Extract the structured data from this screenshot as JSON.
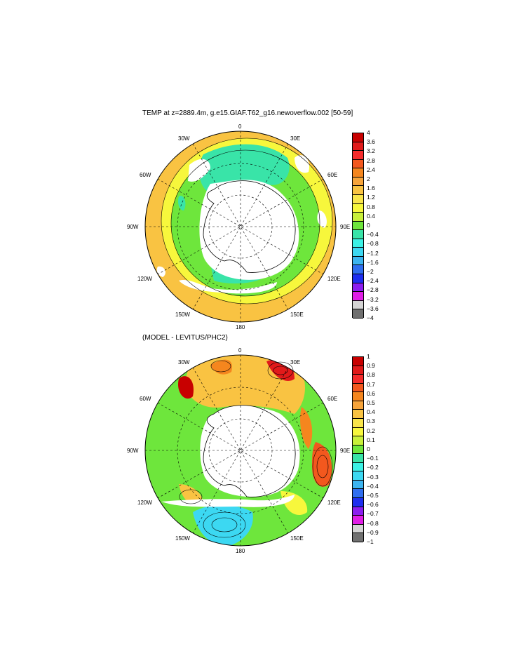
{
  "panels": [
    {
      "id": "top",
      "title": "TEMP at z=2889.4m, g.e15.GIAF.T62_g16.newoverflow.002 [50-59]",
      "longitude_labels": [
        "0",
        "30E",
        "60E",
        "90E",
        "120E",
        "150E",
        "180",
        "150W",
        "120W",
        "90W",
        "60W",
        "30W"
      ],
      "colorbar": {
        "labels": [
          "4",
          "3.6",
          "3.2",
          "2.8",
          "2.4",
          "2",
          "1.6",
          "1.2",
          "0.8",
          "0.4",
          "0",
          "−0.4",
          "−0.8",
          "−1.2",
          "−1.6",
          "−2",
          "−2.4",
          "−2.8",
          "−3.2",
          "−3.6",
          "−4"
        ],
        "colors": [
          "#c80000",
          "#e11a1a",
          "#f52b2b",
          "#f3581e",
          "#f5861e",
          "#f7a43a",
          "#f9c342",
          "#f9e54a",
          "#f7f73c",
          "#c8f03a",
          "#6ee63c",
          "#39e4a8",
          "#3cf2e6",
          "#3cd8f2",
          "#3cb4f0",
          "#2f6ef0",
          "#1e2ef0",
          "#8c1ef0",
          "#e01ee6",
          "#d4d4d4",
          "#707070"
        ]
      }
    },
    {
      "id": "bottom",
      "title": "(MODEL - LEVITUS/PHC2)",
      "longitude_labels": [
        "0",
        "30E",
        "60E",
        "90E",
        "120E",
        "150E",
        "180",
        "150W",
        "120W",
        "90W",
        "60W",
        "30W"
      ],
      "colorbar": {
        "labels": [
          "1",
          "0.9",
          "0.8",
          "0.7",
          "0.6",
          "0.5",
          "0.4",
          "0.3",
          "0.2",
          "0.1",
          "0",
          "−0.1",
          "−0.2",
          "−0.3",
          "−0.4",
          "−0.5",
          "−0.6",
          "−0.7",
          "−0.8",
          "−0.9",
          "−1"
        ],
        "colors": [
          "#c80000",
          "#e11a1a",
          "#f52b2b",
          "#f3581e",
          "#f5861e",
          "#f7a43a",
          "#f9c342",
          "#f9e54a",
          "#f7f73c",
          "#c8f03a",
          "#6ee63c",
          "#39e4a8",
          "#3cf2e6",
          "#3cd8f2",
          "#3cb4f0",
          "#2f6ef0",
          "#1e2ef0",
          "#8c1ef0",
          "#e01ee6",
          "#d4d4d4",
          "#707070"
        ]
      }
    }
  ]
}
